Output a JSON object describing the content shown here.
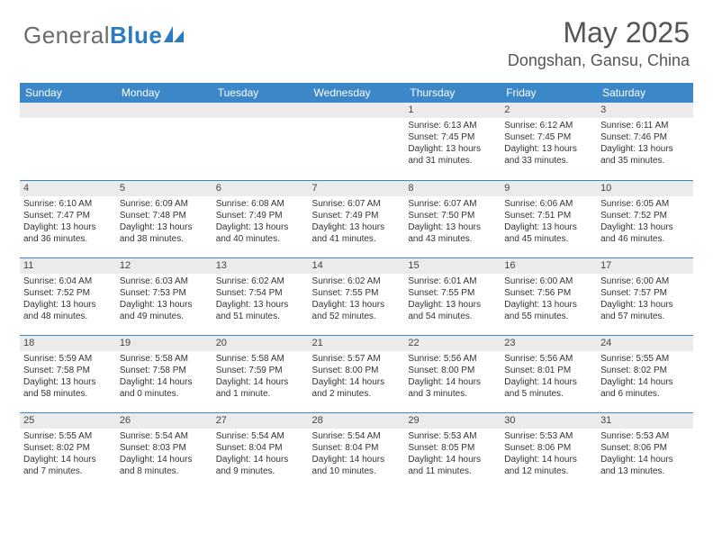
{
  "logo": {
    "text1": "General",
    "text2": "Blue"
  },
  "title": "May 2025",
  "location": "Dongshan, Gansu, China",
  "colors": {
    "header_bg": "#3b87c8",
    "header_text": "#ffffff",
    "daynum_bg": "#ebebeb",
    "rule": "#3b87c8",
    "logo_gray": "#6b6b6b",
    "logo_blue": "#2c7ac0"
  },
  "weekdays": [
    "Sunday",
    "Monday",
    "Tuesday",
    "Wednesday",
    "Thursday",
    "Friday",
    "Saturday"
  ],
  "weeks": [
    [
      {
        "blank": true
      },
      {
        "blank": true
      },
      {
        "blank": true
      },
      {
        "blank": true
      },
      {
        "day": "1",
        "sunrise": "Sunrise: 6:13 AM",
        "sunset": "Sunset: 7:45 PM",
        "daylight": "Daylight: 13 hours and 31 minutes."
      },
      {
        "day": "2",
        "sunrise": "Sunrise: 6:12 AM",
        "sunset": "Sunset: 7:45 PM",
        "daylight": "Daylight: 13 hours and 33 minutes."
      },
      {
        "day": "3",
        "sunrise": "Sunrise: 6:11 AM",
        "sunset": "Sunset: 7:46 PM",
        "daylight": "Daylight: 13 hours and 35 minutes."
      }
    ],
    [
      {
        "day": "4",
        "sunrise": "Sunrise: 6:10 AM",
        "sunset": "Sunset: 7:47 PM",
        "daylight": "Daylight: 13 hours and 36 minutes."
      },
      {
        "day": "5",
        "sunrise": "Sunrise: 6:09 AM",
        "sunset": "Sunset: 7:48 PM",
        "daylight": "Daylight: 13 hours and 38 minutes."
      },
      {
        "day": "6",
        "sunrise": "Sunrise: 6:08 AM",
        "sunset": "Sunset: 7:49 PM",
        "daylight": "Daylight: 13 hours and 40 minutes."
      },
      {
        "day": "7",
        "sunrise": "Sunrise: 6:07 AM",
        "sunset": "Sunset: 7:49 PM",
        "daylight": "Daylight: 13 hours and 41 minutes."
      },
      {
        "day": "8",
        "sunrise": "Sunrise: 6:07 AM",
        "sunset": "Sunset: 7:50 PM",
        "daylight": "Daylight: 13 hours and 43 minutes."
      },
      {
        "day": "9",
        "sunrise": "Sunrise: 6:06 AM",
        "sunset": "Sunset: 7:51 PM",
        "daylight": "Daylight: 13 hours and 45 minutes."
      },
      {
        "day": "10",
        "sunrise": "Sunrise: 6:05 AM",
        "sunset": "Sunset: 7:52 PM",
        "daylight": "Daylight: 13 hours and 46 minutes."
      }
    ],
    [
      {
        "day": "11",
        "sunrise": "Sunrise: 6:04 AM",
        "sunset": "Sunset: 7:52 PM",
        "daylight": "Daylight: 13 hours and 48 minutes."
      },
      {
        "day": "12",
        "sunrise": "Sunrise: 6:03 AM",
        "sunset": "Sunset: 7:53 PM",
        "daylight": "Daylight: 13 hours and 49 minutes."
      },
      {
        "day": "13",
        "sunrise": "Sunrise: 6:02 AM",
        "sunset": "Sunset: 7:54 PM",
        "daylight": "Daylight: 13 hours and 51 minutes."
      },
      {
        "day": "14",
        "sunrise": "Sunrise: 6:02 AM",
        "sunset": "Sunset: 7:55 PM",
        "daylight": "Daylight: 13 hours and 52 minutes."
      },
      {
        "day": "15",
        "sunrise": "Sunrise: 6:01 AM",
        "sunset": "Sunset: 7:55 PM",
        "daylight": "Daylight: 13 hours and 54 minutes."
      },
      {
        "day": "16",
        "sunrise": "Sunrise: 6:00 AM",
        "sunset": "Sunset: 7:56 PM",
        "daylight": "Daylight: 13 hours and 55 minutes."
      },
      {
        "day": "17",
        "sunrise": "Sunrise: 6:00 AM",
        "sunset": "Sunset: 7:57 PM",
        "daylight": "Daylight: 13 hours and 57 minutes."
      }
    ],
    [
      {
        "day": "18",
        "sunrise": "Sunrise: 5:59 AM",
        "sunset": "Sunset: 7:58 PM",
        "daylight": "Daylight: 13 hours and 58 minutes."
      },
      {
        "day": "19",
        "sunrise": "Sunrise: 5:58 AM",
        "sunset": "Sunset: 7:58 PM",
        "daylight": "Daylight: 14 hours and 0 minutes."
      },
      {
        "day": "20",
        "sunrise": "Sunrise: 5:58 AM",
        "sunset": "Sunset: 7:59 PM",
        "daylight": "Daylight: 14 hours and 1 minute."
      },
      {
        "day": "21",
        "sunrise": "Sunrise: 5:57 AM",
        "sunset": "Sunset: 8:00 PM",
        "daylight": "Daylight: 14 hours and 2 minutes."
      },
      {
        "day": "22",
        "sunrise": "Sunrise: 5:56 AM",
        "sunset": "Sunset: 8:00 PM",
        "daylight": "Daylight: 14 hours and 3 minutes."
      },
      {
        "day": "23",
        "sunrise": "Sunrise: 5:56 AM",
        "sunset": "Sunset: 8:01 PM",
        "daylight": "Daylight: 14 hours and 5 minutes."
      },
      {
        "day": "24",
        "sunrise": "Sunrise: 5:55 AM",
        "sunset": "Sunset: 8:02 PM",
        "daylight": "Daylight: 14 hours and 6 minutes."
      }
    ],
    [
      {
        "day": "25",
        "sunrise": "Sunrise: 5:55 AM",
        "sunset": "Sunset: 8:02 PM",
        "daylight": "Daylight: 14 hours and 7 minutes."
      },
      {
        "day": "26",
        "sunrise": "Sunrise: 5:54 AM",
        "sunset": "Sunset: 8:03 PM",
        "daylight": "Daylight: 14 hours and 8 minutes."
      },
      {
        "day": "27",
        "sunrise": "Sunrise: 5:54 AM",
        "sunset": "Sunset: 8:04 PM",
        "daylight": "Daylight: 14 hours and 9 minutes."
      },
      {
        "day": "28",
        "sunrise": "Sunrise: 5:54 AM",
        "sunset": "Sunset: 8:04 PM",
        "daylight": "Daylight: 14 hours and 10 minutes."
      },
      {
        "day": "29",
        "sunrise": "Sunrise: 5:53 AM",
        "sunset": "Sunset: 8:05 PM",
        "daylight": "Daylight: 14 hours and 11 minutes."
      },
      {
        "day": "30",
        "sunrise": "Sunrise: 5:53 AM",
        "sunset": "Sunset: 8:06 PM",
        "daylight": "Daylight: 14 hours and 12 minutes."
      },
      {
        "day": "31",
        "sunrise": "Sunrise: 5:53 AM",
        "sunset": "Sunset: 8:06 PM",
        "daylight": "Daylight: 14 hours and 13 minutes."
      }
    ]
  ]
}
